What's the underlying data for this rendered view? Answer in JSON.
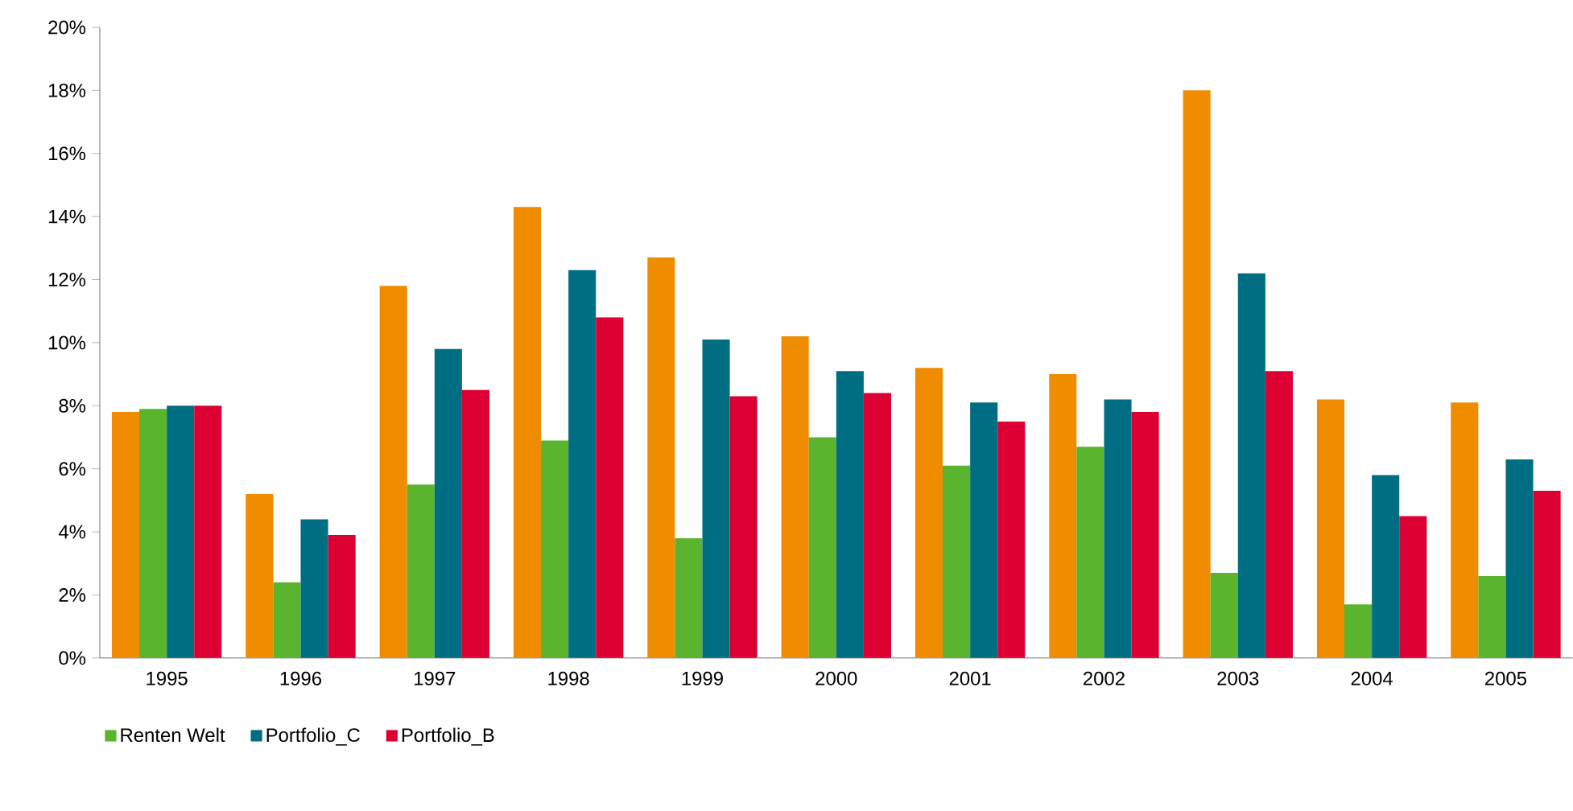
{
  "chart_data": {
    "type": "bar",
    "categories": [
      "1995",
      "1996",
      "1997",
      "1998",
      "1999",
      "2000",
      "2001",
      "2002",
      "2003",
      "2004",
      "2005"
    ],
    "series": [
      {
        "color": "#f08c00",
        "values": [
          7.8,
          5.2,
          11.8,
          14.3,
          12.7,
          10.2,
          9.2,
          9.0,
          18.0,
          8.2,
          8.1
        ]
      },
      {
        "name": "Renten Welt",
        "color": "#5ab42d",
        "values": [
          7.9,
          2.4,
          5.5,
          6.9,
          3.8,
          7.0,
          6.1,
          6.7,
          2.7,
          1.7,
          2.6
        ]
      },
      {
        "name": "Portfolio_C",
        "color": "#006e82",
        "values": [
          8.0,
          4.4,
          9.8,
          12.3,
          10.1,
          9.1,
          8.1,
          8.2,
          12.2,
          5.8,
          6.3
        ]
      },
      {
        "name": "Portfolio_B",
        "color": "#dc0032",
        "values": [
          8.0,
          3.9,
          8.5,
          10.8,
          8.3,
          8.4,
          7.5,
          7.8,
          9.1,
          4.5,
          5.3
        ]
      }
    ],
    "ylim": [
      0,
      20
    ],
    "yticks": [
      {
        "value": 0,
        "label": "0%"
      },
      {
        "value": 2,
        "label": "2%"
      },
      {
        "value": 4,
        "label": "4%"
      },
      {
        "value": 6,
        "label": "6%"
      },
      {
        "value": 8,
        "label": "8%"
      },
      {
        "value": 10,
        "label": "10%"
      },
      {
        "value": 12,
        "label": "12%"
      },
      {
        "value": 14,
        "label": "14%"
      },
      {
        "value": 16,
        "label": "16%"
      },
      {
        "value": 18,
        "label": "18%"
      },
      {
        "value": 20,
        "label": "20%"
      }
    ],
    "grid": false,
    "legend": "bottom left"
  }
}
